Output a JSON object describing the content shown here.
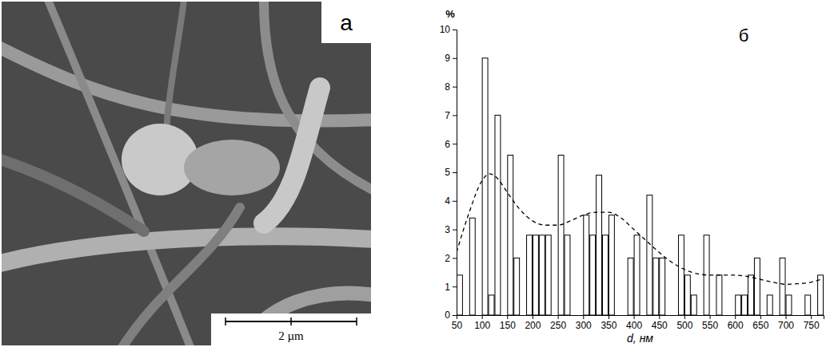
{
  "image_panel": {
    "label": "a",
    "scale_bar": "2 µm"
  },
  "chart_data": {
    "type": "histogram",
    "label": "б",
    "y_label": "%",
    "x_label": "d, нм",
    "bins": [
      50,
      62.5,
      75,
      87.5,
      100,
      112.5,
      125,
      137.5,
      150,
      162.5,
      175,
      187.5,
      200,
      212.5,
      225,
      237.5,
      250,
      262.5,
      275,
      287.5,
      300,
      312.5,
      325,
      337.5,
      350,
      362.5,
      375,
      387.5,
      400,
      412.5,
      425,
      437.5,
      450,
      462.5,
      475,
      487.5,
      500,
      512.5,
      525,
      537.5,
      550,
      562.5,
      575,
      587.5,
      600,
      612.5,
      625,
      637.5,
      650,
      662.5,
      675,
      687.5,
      700,
      712.5,
      725,
      737.5,
      750,
      762.5,
      775
    ],
    "values": [
      1.4,
      0,
      3.4,
      0,
      9.0,
      0.7,
      7.0,
      0,
      5.6,
      2.0,
      0,
      2.8,
      2.8,
      2.8,
      2.8,
      0,
      5.6,
      2.8,
      0,
      0,
      3.5,
      2.8,
      4.9,
      2.8,
      3.5,
      0,
      0,
      2.0,
      2.8,
      0,
      4.2,
      2.0,
      2.0,
      0,
      0,
      2.8,
      1.4,
      0.7,
      0,
      2.8,
      0,
      1.4,
      0,
      0,
      0.7,
      0.7,
      1.4,
      2.0,
      0,
      0.7,
      0,
      2.0,
      0.7,
      0,
      0,
      0.7,
      0,
      1.4
    ],
    "color": "#ffffff",
    "xlim": [
      50,
      775
    ],
    "ylim": [
      0,
      10
    ],
    "xticks": [
      50,
      100,
      150,
      200,
      250,
      300,
      350,
      400,
      450,
      500,
      550,
      600,
      650,
      700,
      750
    ],
    "yticks": [
      0,
      1,
      2,
      3,
      4,
      5,
      6,
      7,
      8,
      9,
      10
    ],
    "grid": false,
    "series": [
      {
        "type": "line",
        "line_style": "dashed",
        "color": "#000000",
        "x": [
          50,
          75,
          100,
          115,
          130,
          150,
          175,
          200,
          225,
          250,
          275,
          300,
          325,
          350,
          375,
          400,
          425,
          450,
          475,
          500,
          525,
          550,
          575,
          600,
          625,
          650,
          675,
          700,
          725,
          750,
          770
        ],
        "values": [
          2.2,
          3.6,
          4.7,
          4.95,
          4.8,
          4.3,
          3.7,
          3.3,
          3.15,
          3.15,
          3.3,
          3.5,
          3.6,
          3.6,
          3.4,
          3.0,
          2.6,
          2.2,
          1.85,
          1.6,
          1.45,
          1.4,
          1.4,
          1.4,
          1.35,
          1.25,
          1.15,
          1.08,
          1.1,
          1.15,
          1.25
        ]
      }
    ]
  }
}
